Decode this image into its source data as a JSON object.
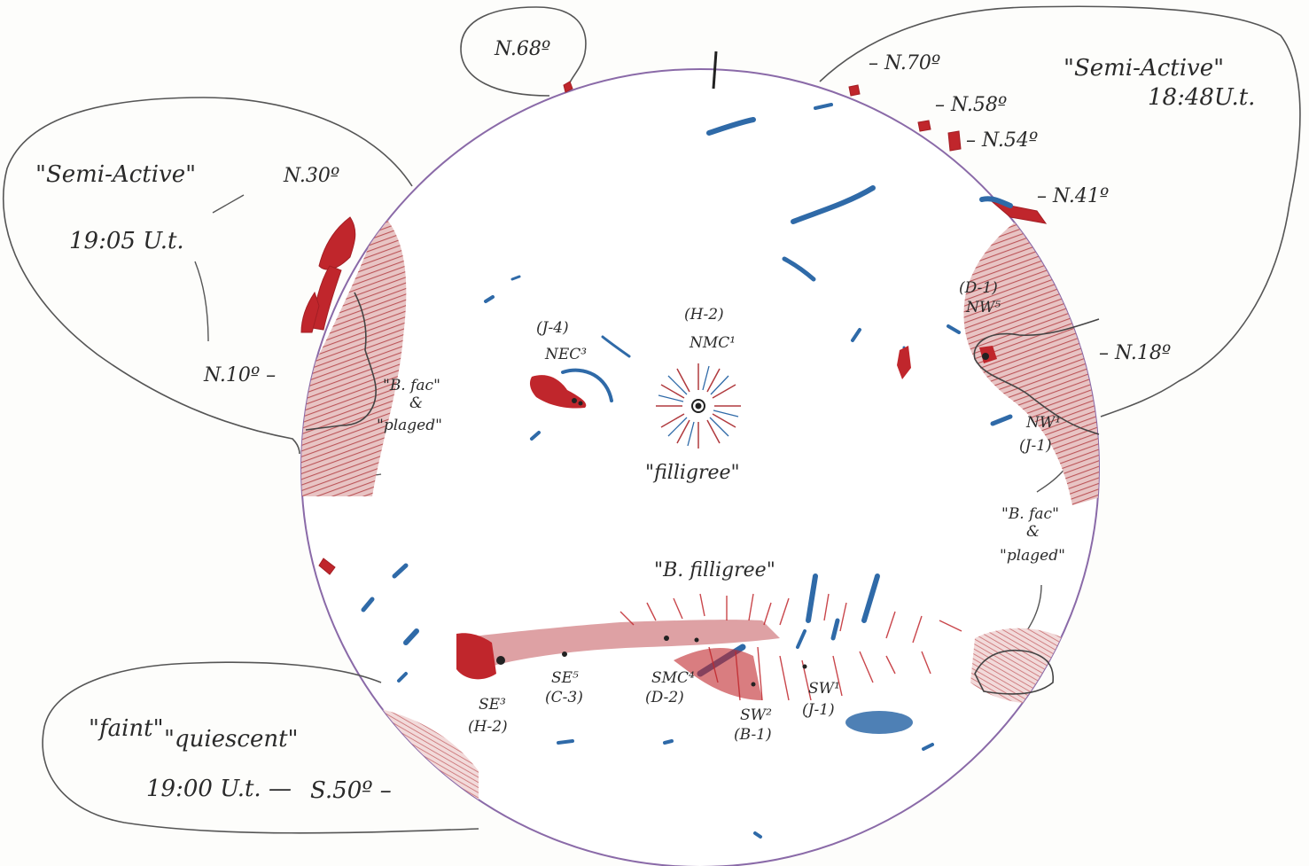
{
  "labels": {
    "n68": "N.68º",
    "n70": "– N.70º",
    "n58": "– N.58º",
    "n54": "– N.54º",
    "n41": "– N.41º",
    "n18": "– N.18º",
    "n30": "N.30º",
    "n10": "N.10º –",
    "s50": "S.50º –",
    "semi_active_right": "\"Semi-Active\"",
    "time_right": "18:48U.t.",
    "semi_active_left": "\"Semi-Active\"",
    "time_left": "19:05 U.t.",
    "faint": "\"faint\"",
    "quiescent": "\"quiescent\"",
    "time_bottom": "19:00 U.t. —",
    "bfac_left": "\"B. fac\"",
    "amp_left": "&",
    "plaged_left": "\"plaged\"",
    "bfac_right": "\"B. fac\"",
    "amp_right": "&",
    "plaged_right": "\"plaged\"",
    "j4": "(J-4)",
    "nec": "NEC³",
    "h2_top": "(H-2)",
    "nmc": "NMC¹",
    "filigree": "\"filligree\"",
    "d1": "(D-1)",
    "nw5": "NW⁵",
    "nw1": "NW¹",
    "j1_nw": "(J-1)",
    "b_filigree": "\"B. filligree\"",
    "se3": "SE³",
    "h2_bottom": "(H-2)",
    "se5": "SE⁵",
    "c3": "(C-3)",
    "smc": "SMC⁴",
    "d2": "(D-2)",
    "sw2": "SW²",
    "b1": "(B-1)",
    "sw1": "SW¹",
    "j1_sw": "(J-1)"
  },
  "colors": {
    "paper": "#fdfdfb",
    "limb": "#8a6aa8",
    "prominence_red": "#c0262c",
    "plage_red": "#b03a3e",
    "filament_blue": "#2f6aa8",
    "pencil": "#4a4a4a"
  }
}
